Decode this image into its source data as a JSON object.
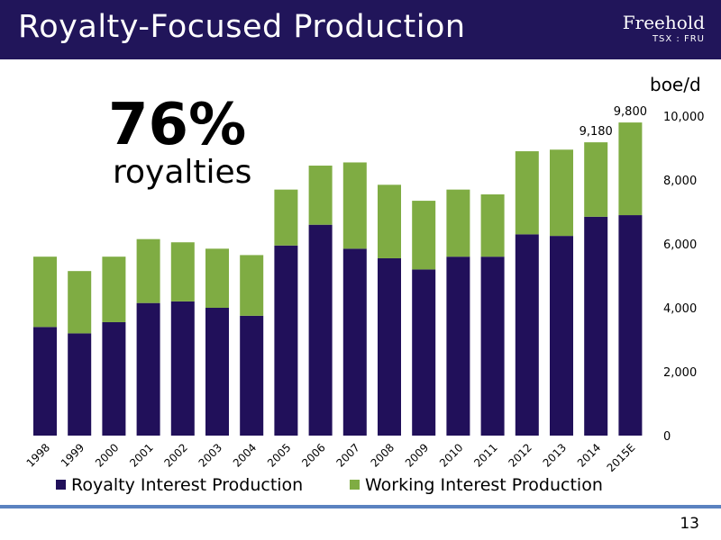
{
  "header": {
    "title": "Royalty-Focused Production"
  },
  "brand": {
    "name": "Freehold",
    "ticker": "TSX : FRU"
  },
  "callout": {
    "percent": "76%",
    "label": "royalties"
  },
  "page_number": "13",
  "colors": {
    "header_bg": "#21155a",
    "royalty": "#21105a",
    "working": "#7fac43",
    "footer_line": "#5b82c0"
  },
  "chart_data": {
    "type": "bar",
    "stacked": true,
    "categories": [
      "1998",
      "1999",
      "2000",
      "2001",
      "2002",
      "2003",
      "2004",
      "2005",
      "2006",
      "2007",
      "2008",
      "2009",
      "2010",
      "2011",
      "2012",
      "2013",
      "2014",
      "2015E"
    ],
    "series": [
      {
        "name": "Royalty Interest Production",
        "color": "#21105a",
        "values": [
          3400,
          3200,
          3550,
          4150,
          4200,
          4000,
          3750,
          5950,
          6600,
          5850,
          5550,
          5200,
          5600,
          5600,
          6300,
          6250,
          6850,
          6900
        ]
      },
      {
        "name": "Working Interest Production",
        "color": "#7fac43",
        "values": [
          2200,
          1950,
          2050,
          2000,
          1850,
          1850,
          1900,
          1750,
          1850,
          2700,
          2300,
          2150,
          2100,
          1950,
          2600,
          2700,
          2330,
          2900
        ]
      }
    ],
    "data_labels": [
      {
        "category": "2014",
        "text": "9,180"
      },
      {
        "category": "2015E",
        "text": "9,800"
      }
    ],
    "ylabel": "boe/d",
    "y_axis_position": "right",
    "ylim": [
      0,
      10000
    ],
    "yticks": [
      "0",
      "2,000",
      "4,000",
      "6,000",
      "8,000",
      "10,000"
    ],
    "grid": false,
    "legend_position": "bottom"
  }
}
